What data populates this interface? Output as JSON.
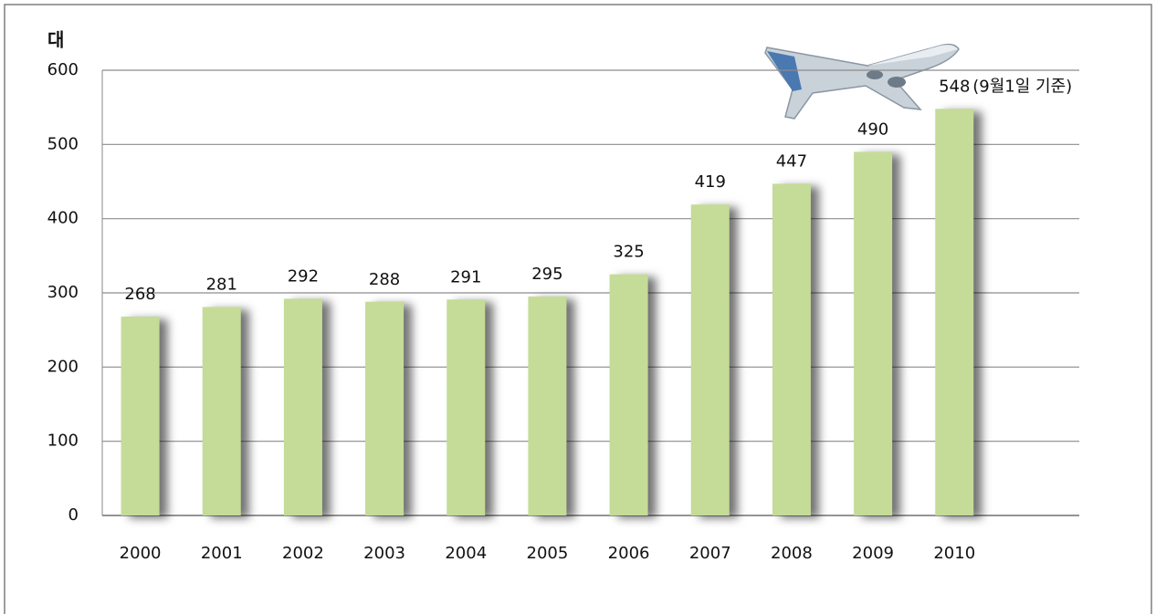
{
  "chart_data": {
    "type": "bar",
    "unit_label": "대",
    "categories": [
      "2000",
      "2001",
      "2002",
      "2003",
      "2004",
      "2005",
      "2006",
      "2007",
      "2008",
      "2009",
      "2010"
    ],
    "values": [
      268,
      281,
      292,
      288,
      291,
      295,
      325,
      419,
      447,
      490,
      548
    ],
    "annotation": "(9월1일 기준)",
    "color": "#c4dc98",
    "ylim": [
      0,
      600
    ],
    "yticks": [
      0,
      100,
      200,
      300,
      400,
      500,
      600
    ],
    "grid": true
  }
}
